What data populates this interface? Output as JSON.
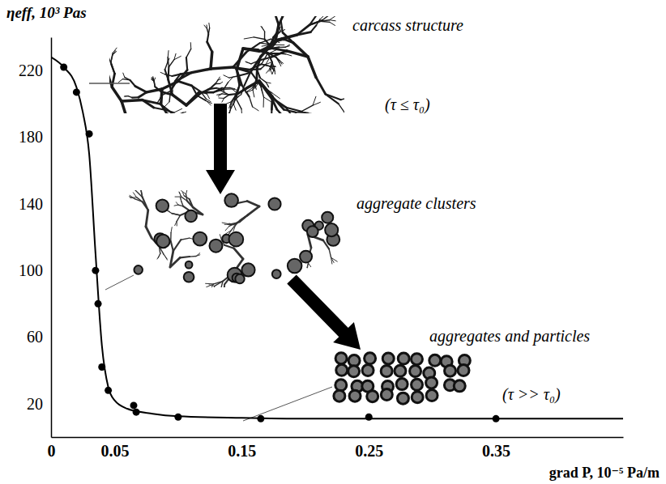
{
  "chart_data": {
    "type": "line",
    "x_label": "grad P, 10⁻⁵ Pa/m",
    "y_label": "ηeff, 10³ Pas",
    "xlim": [
      0,
      0.45
    ],
    "ylim": [
      0,
      240
    ],
    "xticks": [
      0,
      0.05,
      0.15,
      0.25,
      0.35
    ],
    "yticks": [
      20,
      60,
      100,
      140,
      180,
      220
    ],
    "grid": false,
    "color": "#000000",
    "series": [
      {
        "type": "line",
        "line_style": "solid",
        "color": "#000000",
        "x": [
          0,
          0.01,
          0.02,
          0.025,
          0.03,
          0.035,
          0.04,
          0.045,
          0.05,
          0.06,
          0.08,
          0.1,
          0.15,
          0.2,
          0.3,
          0.45
        ],
        "values": [
          228,
          222,
          210,
          195,
          170,
          110,
          55,
          30,
          22,
          17,
          14,
          12.5,
          11.5,
          11,
          11,
          11
        ]
      },
      {
        "type": "scatter",
        "marker": "circle",
        "color": "#000000",
        "x": [
          0.01,
          0.02,
          0.03,
          0.035,
          0.037,
          0.04,
          0.045,
          0.065,
          0.067,
          0.1,
          0.165,
          0.25,
          0.35
        ],
        "values": [
          222,
          207,
          182,
          100,
          80,
          42,
          28,
          19,
          15,
          12,
          11,
          12,
          11
        ]
      }
    ],
    "annotations": [
      "carcass structure",
      "(τ ≤ τ₀)",
      "aggregate clusters",
      "aggregates and particles",
      "(τ >> τ₀)"
    ]
  }
}
